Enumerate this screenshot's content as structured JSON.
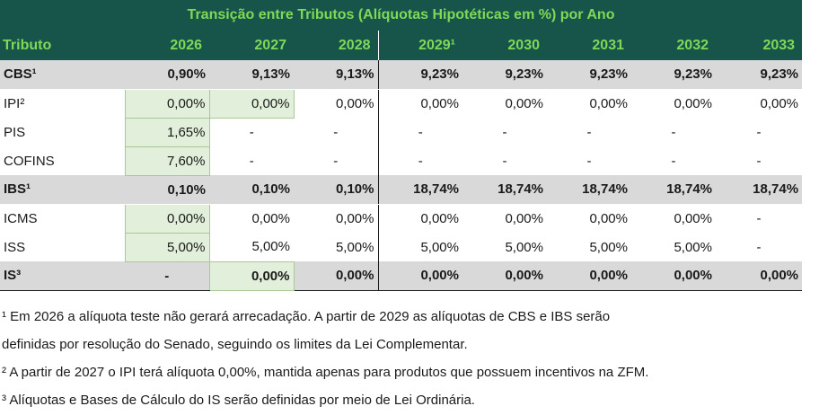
{
  "title": "Transição entre Tributos (Alíquotas Hipotéticas em %) por Ano",
  "header": [
    "Tributo",
    "2026",
    "2027",
    "2028",
    "2029¹",
    "2030",
    "2031",
    "2032",
    "2033"
  ],
  "rows": [
    {
      "cells": [
        "CBS¹",
        "0,90%",
        "9,13%",
        "9,13%",
        "9,23%",
        "9,23%",
        "9,23%",
        "9,23%",
        "9,23%"
      ]
    },
    {
      "cells": [
        "IPI²",
        "0,00%",
        "0,00%",
        "0,00%",
        "0,00%",
        "0,00%",
        "0,00%",
        "0,00%",
        "0,00%"
      ]
    },
    {
      "cells": [
        "PIS",
        "1,65%",
        "-",
        "-",
        "-",
        "-",
        "-",
        "-",
        "-"
      ]
    },
    {
      "cells": [
        "COFINS",
        "7,60%",
        "-",
        "-",
        "-",
        "-",
        "-",
        "-",
        "-"
      ]
    },
    {
      "cells": [
        "IBS¹",
        "0,10%",
        "0,10%",
        "0,10%",
        "18,74%",
        "18,74%",
        "18,74%",
        "18,74%",
        "18,74%"
      ]
    },
    {
      "cells": [
        "ICMS",
        "0,00%",
        "0,00%",
        "0,00%",
        "0,00%",
        "0,00%",
        "0,00%",
        "0,00%",
        "-"
      ]
    },
    {
      "cells": [
        "ISS",
        "5,00%",
        "5,00%",
        "5,00%",
        "5,00%",
        "5,00%",
        "5,00%",
        "5,00%",
        "-"
      ]
    },
    {
      "cells": [
        "IS³",
        "-",
        "0,00%",
        "0,00%",
        "0,00%",
        "0,00%",
        "0,00%",
        "0,00%",
        "0,00%"
      ]
    }
  ],
  "notes": [
    "¹ Em 2026 a alíquota teste não gerará arrecadação. A partir de 2029 as alíquotas de CBS e IBS serão",
    "definidas por resolução do Senado, seguindo os limites da Lei Complementar.",
    "² A partir de 2027 o IPI terá alíquota 0,00%, mantida apenas para produtos que possuem incentivos na ZFM.",
    "³ Alíquotas e Bases de Cálculo do IS serão definidas por meio de Lei Ordinária."
  ],
  "colors": {
    "header_bg": "#17544a",
    "header_text": "#7ed957",
    "summary_row_bg": "#d9d9d9",
    "highlight_cell_bg": "#e2efda"
  }
}
